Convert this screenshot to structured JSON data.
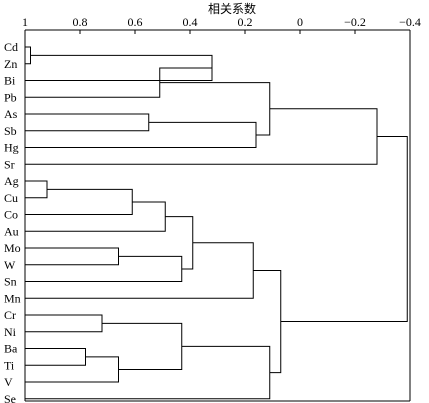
{
  "chart_data": {
    "type": "dendrogram",
    "title": "",
    "axis_label": "相关系数",
    "axis": {
      "position": "top",
      "range": [
        1,
        -0.4
      ],
      "ticks": [
        {
          "value": 1,
          "label": "1"
        },
        {
          "value": 0.8,
          "label": "0.8"
        },
        {
          "value": 0.6,
          "label": "0.6"
        },
        {
          "value": 0.4,
          "label": "0.4"
        },
        {
          "value": 0.2,
          "label": "0.2"
        },
        {
          "value": 0,
          "label": "0"
        },
        {
          "value": -0.2,
          "label": "−0.2"
        },
        {
          "value": -0.4,
          "label": "−0.4"
        }
      ]
    },
    "leaves": [
      "Cd",
      "Zn",
      "Bi",
      "Pb",
      "As",
      "Sb",
      "Hg",
      "Sr",
      "Ag",
      "Cu",
      "Co",
      "Au",
      "Mo",
      "W",
      "Sn",
      "Mn",
      "Cr",
      "Ni",
      "Ba",
      "Ti",
      "V",
      "Se"
    ],
    "merges": [
      {
        "id": "m1",
        "a": "Cd",
        "b": "Zn",
        "similarity": 0.98
      },
      {
        "id": "m2",
        "a": "m1",
        "b": "Bi",
        "similarity": 0.32
      },
      {
        "id": "m3",
        "a": "m2",
        "b": "Pb",
        "similarity": 0.51
      },
      {
        "id": "m4",
        "a": "As",
        "b": "Sb",
        "similarity": 0.55
      },
      {
        "id": "m5",
        "a": "m4",
        "b": "Hg",
        "similarity": 0.16
      },
      {
        "id": "m6",
        "a": "m3",
        "b": "m5",
        "similarity": 0.11
      },
      {
        "id": "m7",
        "a": "m6",
        "b": "Sr",
        "similarity": -0.28
      },
      {
        "id": "m8",
        "a": "Ag",
        "b": "Cu",
        "similarity": 0.92
      },
      {
        "id": "m9",
        "a": "m8",
        "b": "Co",
        "similarity": 0.61
      },
      {
        "id": "m10",
        "a": "m9",
        "b": "Au",
        "similarity": 0.49
      },
      {
        "id": "m11",
        "a": "Mo",
        "b": "W",
        "similarity": 0.66
      },
      {
        "id": "m12",
        "a": "m11",
        "b": "Sn",
        "similarity": 0.43
      },
      {
        "id": "m13",
        "a": "m10",
        "b": "m12",
        "similarity": 0.39
      },
      {
        "id": "m14",
        "a": "m13",
        "b": "Mn",
        "similarity": 0.17
      },
      {
        "id": "m15",
        "a": "Cr",
        "b": "Ni",
        "similarity": 0.72
      },
      {
        "id": "m16",
        "a": "Ba",
        "b": "Ti",
        "similarity": 0.78
      },
      {
        "id": "m17",
        "a": "m16",
        "b": "V",
        "similarity": 0.66
      },
      {
        "id": "m18",
        "a": "m15",
        "b": "m17",
        "similarity": 0.43
      },
      {
        "id": "m19",
        "a": "m18",
        "b": "Se",
        "similarity": 0.11
      },
      {
        "id": "m20",
        "a": "m14",
        "b": "m19",
        "similarity": 0.07
      },
      {
        "id": "m21",
        "a": "m7",
        "b": "m20",
        "similarity": -0.39
      }
    ]
  }
}
